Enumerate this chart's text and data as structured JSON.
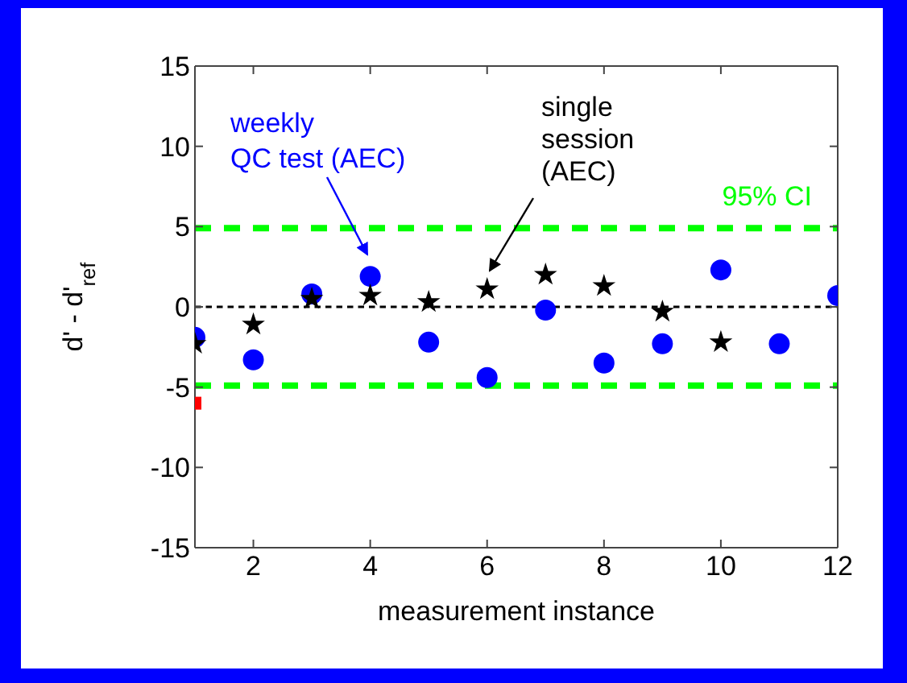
{
  "chart_data": {
    "type": "scatter",
    "xlabel": "measurement instance",
    "ylabel": "d' - d'$_{ref}$",
    "x": [
      1,
      2,
      3,
      4,
      5,
      6,
      7,
      8,
      9,
      10,
      11,
      12
    ],
    "series": [
      {
        "color": "#0000ff",
        "marker": "circle",
        "values": [
          -1.9,
          -3.3,
          0.8,
          1.9,
          -2.2,
          -4.4,
          -0.2,
          -3.5,
          -2.3,
          2.3,
          -2.3,
          0.7
        ]
      },
      {
        "color": "#000000",
        "marker": "star",
        "values": [
          -2.3,
          -1.1,
          0.5,
          0.7,
          0.3,
          1.1,
          2.0,
          1.3,
          -0.3,
          -2.2,
          null,
          null
        ]
      },
      {
        "color": "#ff0000",
        "marker": "square",
        "x": [
          1
        ],
        "values": [
          -6
        ]
      }
    ],
    "xlim": [
      1,
      12
    ],
    "xticks": [
      2,
      4,
      6,
      8,
      10,
      12
    ],
    "ylim": [
      -15,
      15
    ],
    "yticks": [
      -15,
      -10,
      -5,
      0,
      5,
      10,
      15
    ],
    "ref_lines": [
      {
        "axis": "y",
        "value": 4.9,
        "label": "95% CI",
        "color": "#00ff00",
        "line_style": "dashed"
      },
      {
        "axis": "y",
        "value": -4.9,
        "color": "#00ff00",
        "line_style": "dashed"
      },
      {
        "axis": "y",
        "value": 0,
        "color": "#000000",
        "line_style": "dashed"
      }
    ],
    "annotations": [
      "weekly\nQC test (AEC)",
      "single\nsession\n(AEC)"
    ],
    "grid": false
  }
}
